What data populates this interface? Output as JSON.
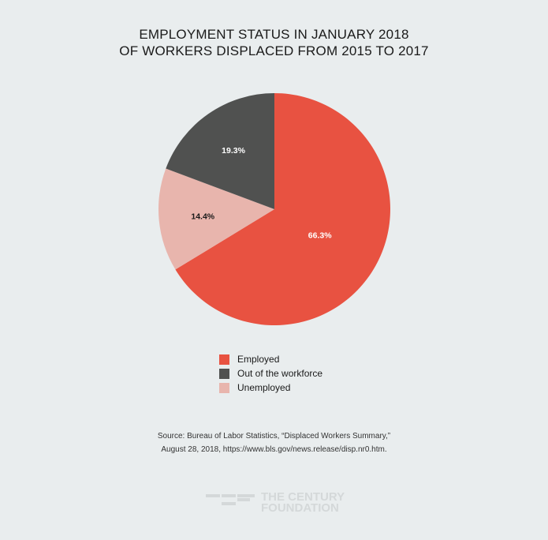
{
  "chart_data": {
    "type": "pie",
    "title": [
      "EMPLOYMENT STATUS IN JANUARY 2018",
      "OF WORKERS DISPLACED FROM 2015 TO 2017"
    ],
    "slices": [
      {
        "label": "Employed",
        "value": 66.3,
        "display": "66.3%",
        "color": "#e85241",
        "text_color": "#ffffff"
      },
      {
        "label": "Unemployed",
        "value": 14.4,
        "display": "14.4%",
        "color": "#e8b5ad",
        "text_color": "#1a1a1a"
      },
      {
        "label": "Out of the workforce",
        "value": 19.3,
        "display": "19.3%",
        "color": "#505150",
        "text_color": "#ffffff"
      }
    ],
    "legend_order": [
      0,
      2,
      1
    ],
    "legend_placement": "bottom"
  },
  "source": [
    "Source: Bureau of Labor Statistics, “Displaced Workers Summary,”",
    "August 28, 2018, https://www.bls.gov/news.release/disp.nr0.htm."
  ],
  "logo": [
    "THE CENTURY",
    "FOUNDATION"
  ]
}
